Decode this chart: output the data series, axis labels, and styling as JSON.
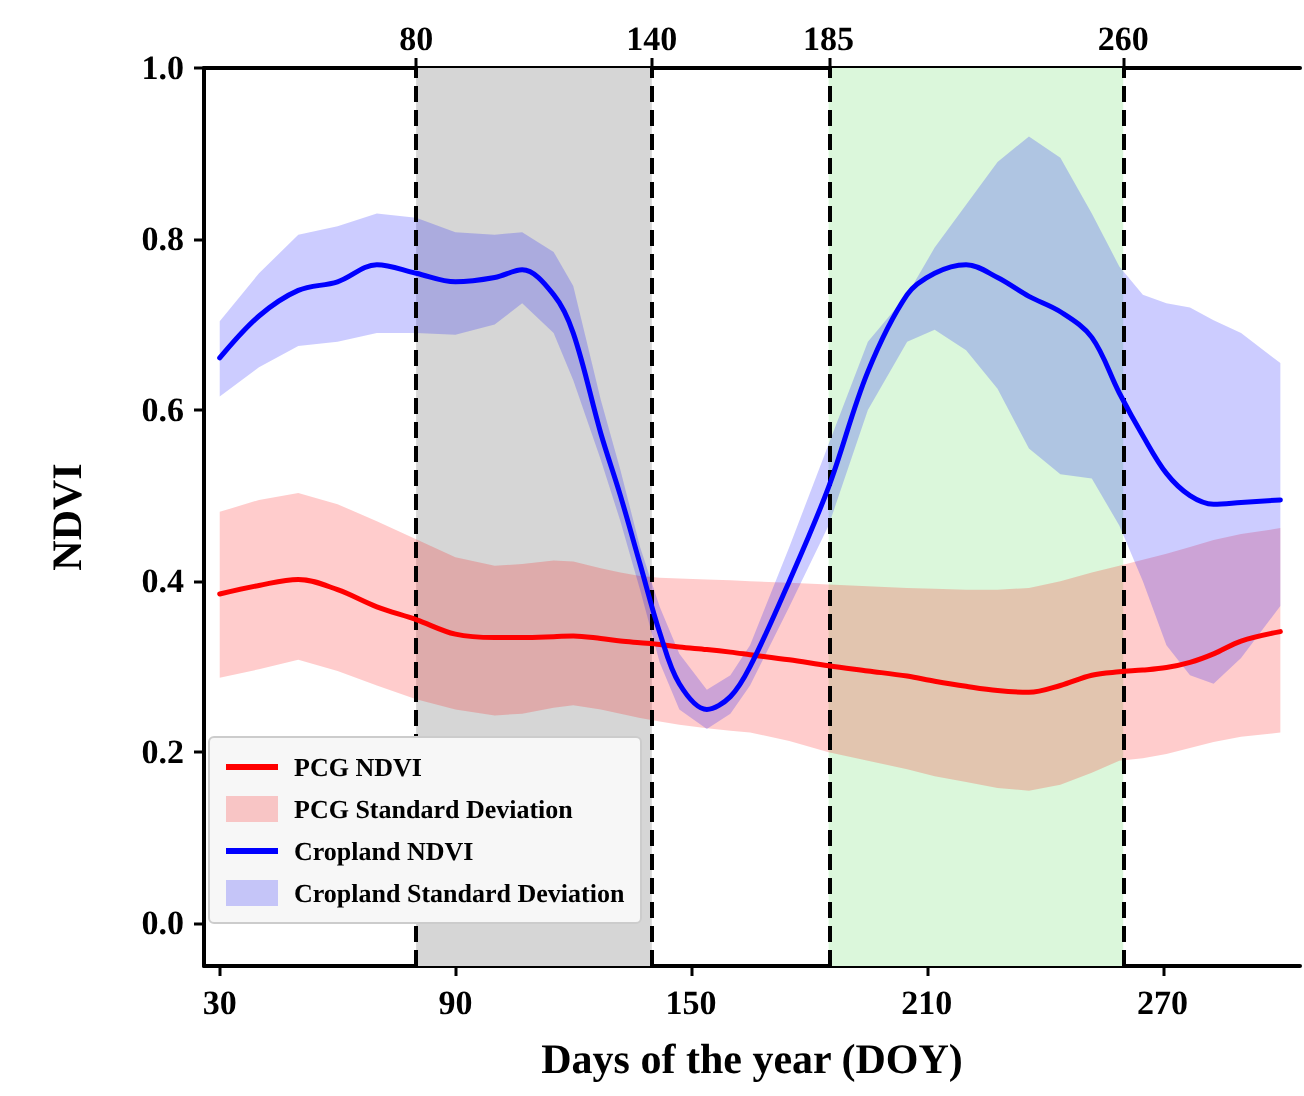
{
  "chart_data": {
    "type": "line",
    "xlabel": "Days of the year (DOY)",
    "ylabel": "NDVI",
    "annotations": [
      "PCG Standard Deviation",
      "Cropland Standard Deviation"
    ],
    "x": [
      30,
      40,
      50,
      60,
      70,
      80,
      90,
      100,
      107,
      115,
      120,
      127,
      132,
      137,
      142,
      147,
      154,
      160,
      165,
      175,
      185,
      195,
      205,
      212,
      220,
      228,
      236,
      244,
      252,
      259,
      265,
      271,
      277,
      283,
      290,
      300
    ],
    "series": [
      {
        "name": "PCG NDVI",
        "color": "#ff0000",
        "values": [
          0.385,
          0.395,
          0.402,
          0.39,
          0.37,
          0.355,
          0.338,
          0.334,
          0.334,
          0.335,
          0.336,
          0.333,
          0.33,
          0.328,
          0.326,
          0.323,
          0.32,
          0.317,
          0.314,
          0.308,
          0.301,
          0.295,
          0.289,
          0.283,
          0.277,
          0.272,
          0.27,
          0.278,
          0.29,
          0.294,
          0.296,
          0.299,
          0.305,
          0.315,
          0.33,
          0.341
        ],
        "lower": [
          0.287,
          0.297,
          0.308,
          0.295,
          0.278,
          0.262,
          0.25,
          0.243,
          0.245,
          0.252,
          0.255,
          0.25,
          0.245,
          0.24,
          0.236,
          0.232,
          0.228,
          0.225,
          0.223,
          0.213,
          0.2,
          0.19,
          0.18,
          0.172,
          0.165,
          0.158,
          0.155,
          0.162,
          0.176,
          0.19,
          0.193,
          0.198,
          0.205,
          0.212,
          0.218,
          0.223
        ],
        "upper": [
          0.481,
          0.495,
          0.503,
          0.49,
          0.47,
          0.449,
          0.428,
          0.418,
          0.42,
          0.424,
          0.423,
          0.415,
          0.41,
          0.406,
          0.404,
          0.403,
          0.402,
          0.401,
          0.4,
          0.398,
          0.396,
          0.394,
          0.392,
          0.391,
          0.39,
          0.39,
          0.392,
          0.4,
          0.41,
          0.418,
          0.425,
          0.432,
          0.44,
          0.448,
          0.455,
          0.462
        ]
      },
      {
        "name": "Cropland NDVI",
        "color": "#0000ff",
        "values": [
          0.661,
          0.71,
          0.74,
          0.75,
          0.77,
          0.76,
          0.75,
          0.755,
          0.764,
          0.735,
          0.69,
          0.573,
          0.5,
          0.42,
          0.34,
          0.28,
          0.25,
          0.265,
          0.3,
          0.4,
          0.51,
          0.645,
          0.735,
          0.76,
          0.77,
          0.755,
          0.733,
          0.715,
          0.685,
          0.62,
          0.57,
          0.526,
          0.5,
          0.49,
          0.492,
          0.495
        ],
        "lower": [
          0.616,
          0.65,
          0.675,
          0.68,
          0.69,
          0.69,
          0.688,
          0.7,
          0.725,
          0.69,
          0.635,
          0.542,
          0.47,
          0.39,
          0.305,
          0.25,
          0.227,
          0.245,
          0.278,
          0.37,
          0.465,
          0.6,
          0.68,
          0.694,
          0.67,
          0.625,
          0.555,
          0.525,
          0.52,
          0.465,
          0.4,
          0.325,
          0.29,
          0.28,
          0.31,
          0.371
        ],
        "upper": [
          0.704,
          0.76,
          0.805,
          0.815,
          0.83,
          0.825,
          0.808,
          0.805,
          0.808,
          0.785,
          0.745,
          0.612,
          0.53,
          0.44,
          0.37,
          0.315,
          0.273,
          0.29,
          0.325,
          0.44,
          0.56,
          0.68,
          0.735,
          0.79,
          0.84,
          0.89,
          0.92,
          0.895,
          0.83,
          0.768,
          0.735,
          0.725,
          0.72,
          0.705,
          0.69,
          0.655
        ]
      }
    ],
    "xlim": [
      26,
      305
    ],
    "xticks": [
      30,
      90,
      150,
      210,
      270
    ],
    "x2lim": [
      26,
      305
    ],
    "x2ticks": [
      80,
      140,
      185,
      260
    ],
    "ylim": [
      -0.05,
      1.0
    ],
    "yticks": [
      {
        "value": 0,
        "label": "0.0"
      },
      {
        "value": 0.2,
        "label": "0.2"
      },
      {
        "value": 0.4,
        "label": "0.4"
      },
      {
        "value": 0.6,
        "label": "0.6"
      },
      {
        "value": 0.8,
        "label": "0.8"
      },
      {
        "value": 1,
        "label": "1.0"
      }
    ],
    "bands": [
      {
        "axis": "x",
        "from": 80,
        "to": 140,
        "color": "#d6d6d6"
      },
      {
        "axis": "x",
        "from": 185,
        "to": 260,
        "color": "#dbf7db"
      }
    ],
    "ref_lines": [
      {
        "axis": "x",
        "value": 80,
        "color": "#000000",
        "line_style": "dashed"
      },
      {
        "axis": "x",
        "value": 140,
        "color": "#000000",
        "line_style": "dashed"
      },
      {
        "axis": "x",
        "value": 185,
        "color": "#000000",
        "line_style": "dashed"
      },
      {
        "axis": "x",
        "value": 260,
        "color": "#000000",
        "line_style": "dashed"
      }
    ],
    "legend": "bottom left",
    "grid": false,
    "marker": "none",
    "line_style": "solid"
  }
}
